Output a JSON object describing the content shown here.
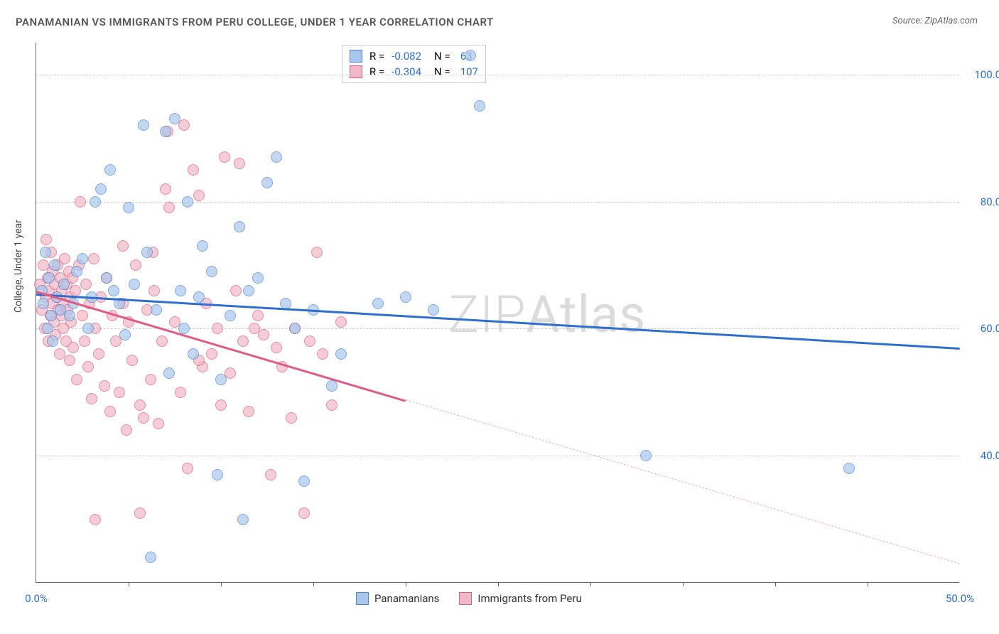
{
  "title": "PANAMANIAN VS IMMIGRANTS FROM PERU COLLEGE, UNDER 1 YEAR CORRELATION CHART",
  "source": "Source: ZipAtlas.com",
  "y_axis_title": "College, Under 1 year",
  "watermark": "ZIPAtlas",
  "chart": {
    "type": "scatter",
    "xlim": [
      0,
      50
    ],
    "ylim": [
      20,
      105
    ],
    "x_ticks_major": [
      0,
      50
    ],
    "x_ticks_minor": [
      5,
      10,
      15,
      20,
      25,
      30,
      35,
      40,
      45
    ],
    "y_grid": [
      40,
      60,
      80,
      100
    ],
    "y_tick_labels": [
      "40.0%",
      "60.0%",
      "80.0%",
      "100.0%"
    ],
    "x_tick_labels": [
      "0.0%",
      "50.0%"
    ],
    "background_color": "#ffffff",
    "grid_color": "#cccccc",
    "axis_color": "#666666",
    "label_color_x": "#2f6fd0",
    "label_color_y": "#2f6fd0",
    "marker_radius": 8,
    "marker_opacity": 0.7,
    "series": [
      {
        "name": "Panamanians",
        "fill": "#a9c7ec",
        "stroke": "#4f86d1",
        "line_color": "#2f6fd0",
        "R": "-0.082",
        "N": "63",
        "trend": {
          "x1": 0,
          "y1": 65.5,
          "x2": 50,
          "y2": 57.0,
          "solid_until_x": 50
        },
        "points": [
          [
            0.3,
            66
          ],
          [
            0.4,
            64
          ],
          [
            0.5,
            72
          ],
          [
            0.6,
            60
          ],
          [
            0.7,
            68
          ],
          [
            0.8,
            62
          ],
          [
            0.9,
            58
          ],
          [
            1.0,
            70
          ],
          [
            1.1,
            65
          ],
          [
            1.3,
            63
          ],
          [
            1.5,
            67
          ],
          [
            1.8,
            62
          ],
          [
            2.0,
            64
          ],
          [
            2.2,
            69
          ],
          [
            2.5,
            71
          ],
          [
            2.8,
            60
          ],
          [
            3.0,
            65
          ],
          [
            3.2,
            80
          ],
          [
            3.5,
            82
          ],
          [
            3.8,
            68
          ],
          [
            4.0,
            85
          ],
          [
            4.2,
            66
          ],
          [
            4.5,
            64
          ],
          [
            4.8,
            59
          ],
          [
            5.0,
            79
          ],
          [
            5.3,
            67
          ],
          [
            5.8,
            92
          ],
          [
            6.0,
            72
          ],
          [
            6.2,
            24
          ],
          [
            6.5,
            63
          ],
          [
            7.0,
            91
          ],
          [
            7.2,
            53
          ],
          [
            7.5,
            93
          ],
          [
            7.8,
            66
          ],
          [
            8.0,
            60
          ],
          [
            8.2,
            80
          ],
          [
            8.5,
            56
          ],
          [
            8.8,
            65
          ],
          [
            9.0,
            73
          ],
          [
            9.5,
            69
          ],
          [
            9.8,
            37
          ],
          [
            10.0,
            52
          ],
          [
            10.5,
            62
          ],
          [
            11.0,
            76
          ],
          [
            11.2,
            30
          ],
          [
            11.5,
            66
          ],
          [
            12.0,
            68
          ],
          [
            12.5,
            83
          ],
          [
            13.0,
            87
          ],
          [
            13.5,
            64
          ],
          [
            14.0,
            60
          ],
          [
            14.5,
            36
          ],
          [
            15.0,
            63
          ],
          [
            16.0,
            51
          ],
          [
            16.5,
            56
          ],
          [
            18.5,
            64
          ],
          [
            20.0,
            65
          ],
          [
            21.5,
            63
          ],
          [
            23.5,
            103
          ],
          [
            24.0,
            95
          ],
          [
            33.0,
            40
          ],
          [
            44.0,
            38
          ]
        ]
      },
      {
        "name": "Immigrants from Peru",
        "fill": "#f1b8c6",
        "stroke": "#e05a84",
        "line_color": "#e05a84",
        "R": "-0.304",
        "N": "107",
        "trend": {
          "x1": 0,
          "y1": 66.0,
          "x2": 50,
          "y2": 23.0,
          "solid_until_x": 20
        },
        "points": [
          [
            0.2,
            67
          ],
          [
            0.3,
            63
          ],
          [
            0.4,
            70
          ],
          [
            0.45,
            60
          ],
          [
            0.5,
            65
          ],
          [
            0.55,
            74
          ],
          [
            0.6,
            68
          ],
          [
            0.65,
            58
          ],
          [
            0.7,
            66
          ],
          [
            0.75,
            62
          ],
          [
            0.8,
            72
          ],
          [
            0.85,
            64
          ],
          [
            0.9,
            69
          ],
          [
            0.95,
            61
          ],
          [
            1.0,
            67
          ],
          [
            1.05,
            59
          ],
          [
            1.1,
            65
          ],
          [
            1.15,
            70
          ],
          [
            1.2,
            63
          ],
          [
            1.25,
            56
          ],
          [
            1.3,
            68
          ],
          [
            1.35,
            62
          ],
          [
            1.4,
            66
          ],
          [
            1.45,
            60
          ],
          [
            1.5,
            64
          ],
          [
            1.55,
            71
          ],
          [
            1.6,
            58
          ],
          [
            1.65,
            67
          ],
          [
            1.7,
            63
          ],
          [
            1.75,
            69
          ],
          [
            1.8,
            55
          ],
          [
            1.85,
            65
          ],
          [
            1.9,
            61
          ],
          [
            1.95,
            68
          ],
          [
            2.0,
            57
          ],
          [
            2.1,
            66
          ],
          [
            2.2,
            52
          ],
          [
            2.3,
            70
          ],
          [
            2.4,
            80
          ],
          [
            2.5,
            62
          ],
          [
            2.6,
            58
          ],
          [
            2.7,
            67
          ],
          [
            2.8,
            54
          ],
          [
            2.9,
            64
          ],
          [
            3.0,
            49
          ],
          [
            3.1,
            71
          ],
          [
            3.2,
            60
          ],
          [
            3.4,
            56
          ],
          [
            3.5,
            65
          ],
          [
            3.7,
            51
          ],
          [
            3.8,
            68
          ],
          [
            4.0,
            47
          ],
          [
            4.1,
            62
          ],
          [
            4.3,
            58
          ],
          [
            4.5,
            50
          ],
          [
            4.7,
            64
          ],
          [
            4.9,
            44
          ],
          [
            5.0,
            61
          ],
          [
            5.2,
            55
          ],
          [
            5.4,
            70
          ],
          [
            5.6,
            48
          ],
          [
            5.8,
            46
          ],
          [
            6.0,
            63
          ],
          [
            6.2,
            52
          ],
          [
            6.4,
            66
          ],
          [
            6.6,
            45
          ],
          [
            6.8,
            58
          ],
          [
            7.0,
            82
          ],
          [
            7.1,
            91
          ],
          [
            7.2,
            79
          ],
          [
            7.5,
            61
          ],
          [
            7.8,
            50
          ],
          [
            8.0,
            92
          ],
          [
            8.2,
            38
          ],
          [
            8.5,
            85
          ],
          [
            8.8,
            81
          ],
          [
            9.0,
            54
          ],
          [
            9.2,
            64
          ],
          [
            9.5,
            56
          ],
          [
            9.8,
            60
          ],
          [
            10.0,
            48
          ],
          [
            10.2,
            87
          ],
          [
            10.5,
            53
          ],
          [
            10.8,
            66
          ],
          [
            11.0,
            86
          ],
          [
            11.2,
            58
          ],
          [
            11.5,
            47
          ],
          [
            12.0,
            62
          ],
          [
            12.3,
            59
          ],
          [
            12.7,
            37
          ],
          [
            13.0,
            57
          ],
          [
            13.3,
            54
          ],
          [
            13.8,
            46
          ],
          [
            14.0,
            60
          ],
          [
            14.5,
            31
          ],
          [
            14.8,
            58
          ],
          [
            15.2,
            72
          ],
          [
            15.5,
            56
          ],
          [
            16.0,
            48
          ],
          [
            16.5,
            61
          ],
          [
            3.2,
            30
          ],
          [
            4.7,
            73
          ],
          [
            5.6,
            31
          ],
          [
            6.3,
            72
          ],
          [
            8.8,
            55
          ],
          [
            11.8,
            60
          ]
        ]
      }
    ],
    "legend_top": {
      "fontsize": 15
    },
    "legend_bottom": {
      "fontsize": 15
    }
  }
}
